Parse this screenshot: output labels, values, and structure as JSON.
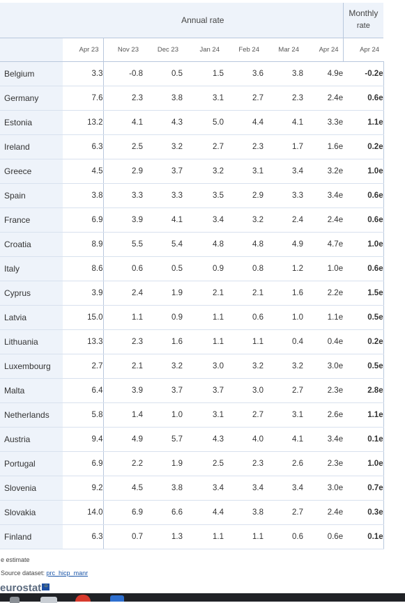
{
  "header": {
    "annual_label": "Annual rate",
    "monthly_label_line1": "Monthly",
    "monthly_label_line2": "rate",
    "columns": [
      "Apr 23",
      "Nov 23",
      "Dec 23",
      "Jan 24",
      "Feb 24",
      "Mar 24",
      "Apr 24",
      "Apr 24"
    ]
  },
  "rows": [
    {
      "country": "Belgium",
      "values": [
        "3.3",
        "-0.8",
        "0.5",
        "1.5",
        "3.6",
        "3.8",
        "4.9e",
        "-0.2e"
      ]
    },
    {
      "country": "Germany",
      "values": [
        "7.6",
        "2.3",
        "3.8",
        "3.1",
        "2.7",
        "2.3",
        "2.4e",
        "0.6e"
      ]
    },
    {
      "country": "Estonia",
      "values": [
        "13.2",
        "4.1",
        "4.3",
        "5.0",
        "4.4",
        "4.1",
        "3.3e",
        "1.1e"
      ]
    },
    {
      "country": "Ireland",
      "values": [
        "6.3",
        "2.5",
        "3.2",
        "2.7",
        "2.3",
        "1.7",
        "1.6e",
        "0.2e"
      ]
    },
    {
      "country": "Greece",
      "values": [
        "4.5",
        "2.9",
        "3.7",
        "3.2",
        "3.1",
        "3.4",
        "3.2e",
        "1.0e"
      ]
    },
    {
      "country": "Spain",
      "values": [
        "3.8",
        "3.3",
        "3.3",
        "3.5",
        "2.9",
        "3.3",
        "3.4e",
        "0.6e"
      ]
    },
    {
      "country": "France",
      "values": [
        "6.9",
        "3.9",
        "4.1",
        "3.4",
        "3.2",
        "2.4",
        "2.4e",
        "0.6e"
      ]
    },
    {
      "country": "Croatia",
      "values": [
        "8.9",
        "5.5",
        "5.4",
        "4.8",
        "4.8",
        "4.9",
        "4.7e",
        "1.0e"
      ]
    },
    {
      "country": "Italy",
      "values": [
        "8.6",
        "0.6",
        "0.5",
        "0.9",
        "0.8",
        "1.2",
        "1.0e",
        "0.6e"
      ]
    },
    {
      "country": "Cyprus",
      "values": [
        "3.9",
        "2.4",
        "1.9",
        "2.1",
        "2.1",
        "1.6",
        "2.2e",
        "1.5e"
      ]
    },
    {
      "country": "Latvia",
      "values": [
        "15.0",
        "1.1",
        "0.9",
        "1.1",
        "0.6",
        "1.0",
        "1.1e",
        "0.5e"
      ]
    },
    {
      "country": "Lithuania",
      "values": [
        "13.3",
        "2.3",
        "1.6",
        "1.1",
        "1.1",
        "0.4",
        "0.4e",
        "0.2e"
      ]
    },
    {
      "country": "Luxembourg",
      "values": [
        "2.7",
        "2.1",
        "3.2",
        "3.0",
        "3.2",
        "3.2",
        "3.0e",
        "0.5e"
      ]
    },
    {
      "country": "Malta",
      "values": [
        "6.4",
        "3.9",
        "3.7",
        "3.7",
        "3.0",
        "2.7",
        "2.3e",
        "2.8e"
      ]
    },
    {
      "country": "Netherlands",
      "values": [
        "5.8",
        "1.4",
        "1.0",
        "3.1",
        "2.7",
        "3.1",
        "2.6e",
        "1.1e"
      ]
    },
    {
      "country": "Austria",
      "values": [
        "9.4",
        "4.9",
        "5.7",
        "4.3",
        "4.0",
        "4.1",
        "3.4e",
        "0.1e"
      ]
    },
    {
      "country": "Portugal",
      "values": [
        "6.9",
        "2.2",
        "1.9",
        "2.5",
        "2.3",
        "2.6",
        "2.3e",
        "1.0e"
      ]
    },
    {
      "country": "Slovenia",
      "values": [
        "9.2",
        "4.5",
        "3.8",
        "3.4",
        "3.4",
        "3.4",
        "3.0e",
        "0.7e"
      ]
    },
    {
      "country": "Slovakia",
      "values": [
        "14.0",
        "6.9",
        "6.6",
        "4.4",
        "3.8",
        "2.7",
        "2.4e",
        "0.3e"
      ]
    },
    {
      "country": "Finland",
      "values": [
        "6.3",
        "0.7",
        "1.3",
        "1.1",
        "1.1",
        "0.6",
        "0.6e",
        "0.1e"
      ]
    }
  ],
  "footer": {
    "estimate_note": "e estimate",
    "source_prefix": "Source dataset: ",
    "source_link": "prc_hicp_manr",
    "logo_text": "eurostat",
    "flag_glyph": "☼"
  },
  "taskbar_icons": [
    "app-icon",
    "window-icon",
    "browser-icon",
    "social-icon"
  ],
  "colors": {
    "stub_background": "#eef3fa",
    "grid_line": "#b8c7dc",
    "link": "#1a55a8",
    "taskbar": "#202226"
  }
}
